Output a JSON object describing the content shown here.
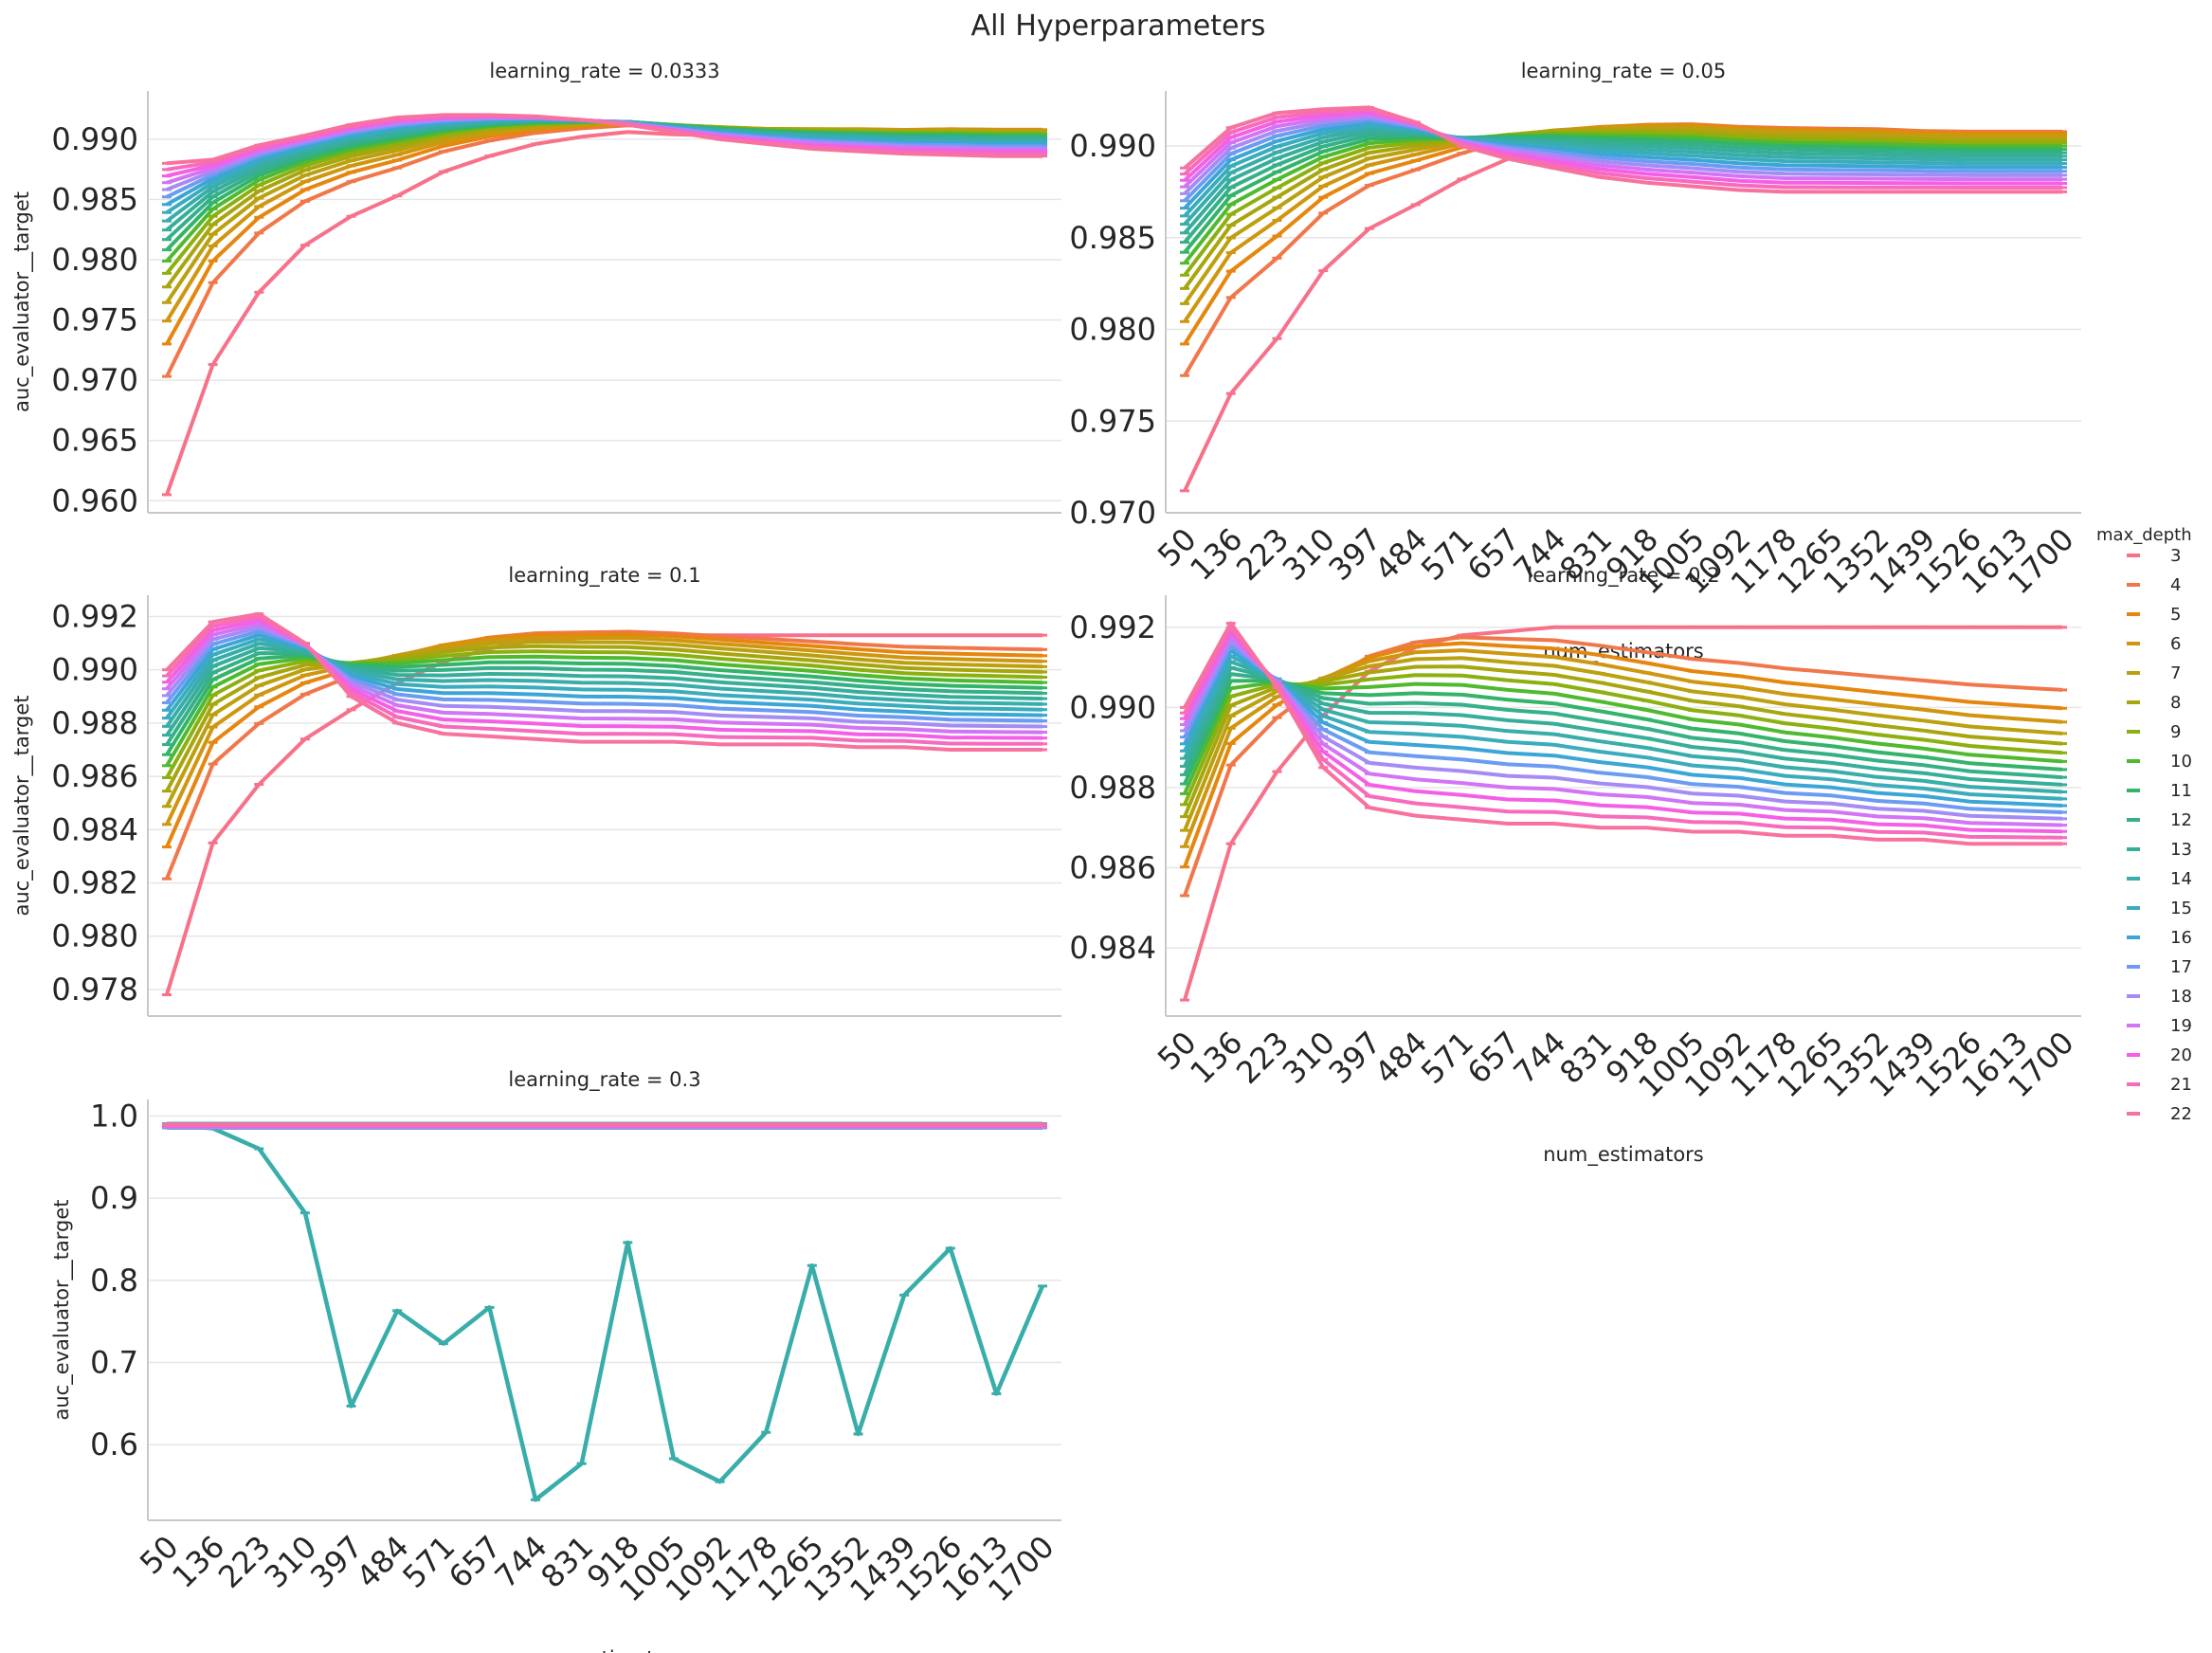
{
  "figure": {
    "title": "All Hyperparameters"
  },
  "chart_data": {
    "type": "line",
    "facet": "learning_rate",
    "x": [
      50,
      136,
      223,
      310,
      397,
      484,
      571,
      657,
      744,
      831,
      918,
      1005,
      1092,
      1178,
      1265,
      1352,
      1439,
      1526,
      1613,
      1700
    ],
    "xlabel": "num_estimators",
    "ylabel": "auc_evaluator__target",
    "legend": {
      "title": "max_depth",
      "placement": "right",
      "entries": [
        {
          "label": "3",
          "color": "#f77189"
        },
        {
          "label": "4",
          "color": "#f1774a"
        },
        {
          "label": "5",
          "color": "#e5870f"
        },
        {
          "label": "6",
          "color": "#cf960f"
        },
        {
          "label": "7",
          "color": "#bba00f"
        },
        {
          "label": "8",
          "color": "#a8a60f"
        },
        {
          "label": "9",
          "color": "#8bb00f"
        },
        {
          "label": "10",
          "color": "#4fba2f"
        },
        {
          "label": "11",
          "color": "#33b46a"
        },
        {
          "label": "12",
          "color": "#35b088"
        },
        {
          "label": "13",
          "color": "#37ae9a"
        },
        {
          "label": "14",
          "color": "#38adaa"
        },
        {
          "label": "15",
          "color": "#3aacbc"
        },
        {
          "label": "16",
          "color": "#3ba6d6"
        },
        {
          "label": "17",
          "color": "#6c9bf2"
        },
        {
          "label": "18",
          "color": "#a48cf4"
        },
        {
          "label": "19",
          "color": "#d274f4"
        },
        {
          "label": "20",
          "color": "#f45fe6"
        },
        {
          "label": "21",
          "color": "#f66bbc"
        },
        {
          "label": "22",
          "color": "#f7729f"
        }
      ]
    },
    "panels": [
      {
        "title": "learning_rate = 0.0333",
        "ylim": [
          0.959,
          0.994
        ],
        "yticks": [
          "0.960",
          "0.965",
          "0.970",
          "0.975",
          "0.980",
          "0.985",
          "0.990"
        ],
        "ytick_values": [
          0.96,
          0.965,
          0.97,
          0.975,
          0.98,
          0.985,
          0.99
        ],
        "show_xticks": false,
        "model": {
          "type": "approach",
          "start": [
            0.9605,
            0.9713,
            0.9773,
            0.9812,
            0.9836,
            0.9853,
            0.9873,
            0.9886,
            0.9896,
            0.9902,
            0.9906,
            0.9904,
            0.9903,
            0.9902,
            0.9903,
            0.9904,
            0.9904,
            0.9905,
            0.9905,
            0.9905
          ],
          "peak": [
            0.988,
            0.9905,
            0.9912,
            0.9915,
            0.9917,
            0.9918,
            0.992,
            0.9922,
            0.9922,
            0.9922,
            0.9922,
            0.9921,
            0.992,
            0.9919,
            0.9918,
            0.9917,
            0.9916,
            0.9916,
            0.9915,
            0.9915
          ],
          "final": [
            0.988,
            0.9883,
            0.9895,
            0.9903,
            0.9912,
            0.9918,
            0.992,
            0.992,
            0.9919,
            0.9916,
            0.9912,
            0.9906,
            0.99,
            0.9896,
            0.9892,
            0.989,
            0.9888,
            0.9887,
            0.9886,
            0.9886
          ]
        }
      },
      {
        "title": "learning_rate = 0.05",
        "ylim": [
          0.97,
          0.993
        ],
        "yticks": [
          "0.970",
          "0.975",
          "0.980",
          "0.985",
          "0.990"
        ],
        "ytick_values": [
          0.97,
          0.975,
          0.98,
          0.985,
          0.99
        ],
        "show_xticks": true,
        "model": {
          "type": "approach",
          "start": [
            0.9712,
            0.9765,
            0.9795,
            0.9832,
            0.9855,
            0.9868,
            0.9882,
            0.9893,
            0.99,
            0.9905,
            0.9908,
            0.9909,
            0.9908,
            0.9908,
            0.9908,
            0.9908,
            0.9907,
            0.9907,
            0.9907,
            0.9907
          ],
          "peak": [
            0.9888,
            0.9912,
            0.9918,
            0.992,
            0.9921,
            0.9922,
            0.9923,
            0.9923,
            0.9923,
            0.9922,
            0.9921,
            0.992,
            0.9918,
            0.9916,
            0.9915,
            0.9914,
            0.9913,
            0.9912,
            0.9912,
            0.9912
          ],
          "final": [
            0.9888,
            0.991,
            0.9918,
            0.992,
            0.9921,
            0.9913,
            0.99,
            0.9893,
            0.9888,
            0.9883,
            0.988,
            0.9878,
            0.9876,
            0.9875,
            0.9875,
            0.9875,
            0.9875,
            0.9875,
            0.9875,
            0.9875
          ]
        }
      },
      {
        "title": "learning_rate = 0.1",
        "ylim": [
          0.977,
          0.9928
        ],
        "yticks": [
          "0.978",
          "0.980",
          "0.982",
          "0.984",
          "0.986",
          "0.988",
          "0.990",
          "0.992"
        ],
        "ytick_values": [
          0.978,
          0.98,
          0.982,
          0.984,
          0.986,
          0.988,
          0.99,
          0.992
        ],
        "show_xticks": false,
        "model": {
          "type": "approach",
          "start": [
            0.9778,
            0.9835,
            0.9857,
            0.9874,
            0.9885,
            0.9895,
            0.9903,
            0.9908,
            0.9911,
            0.9912,
            0.9913,
            0.9913,
            0.9913,
            0.9913,
            0.9913,
            0.9913,
            0.9913,
            0.9913,
            0.9913,
            0.9913
          ],
          "peak": [
            0.99,
            0.9918,
            0.9921,
            0.9922,
            0.9923,
            0.9923,
            0.9923,
            0.9923,
            0.9922,
            0.9921,
            0.992,
            0.9918,
            0.9915,
            0.9912,
            0.9909,
            0.9906,
            0.9903,
            0.9902,
            0.9901,
            0.99
          ],
          "final": [
            0.99,
            0.9918,
            0.9921,
            0.991,
            0.989,
            0.988,
            0.9876,
            0.9875,
            0.9874,
            0.9873,
            0.9873,
            0.9873,
            0.9872,
            0.9872,
            0.9872,
            0.9871,
            0.9871,
            0.987,
            0.987,
            0.987
          ]
        }
      },
      {
        "title": "learning_rate = 0.2",
        "ylim": [
          0.9823,
          0.9928
        ],
        "yticks": [
          "0.984",
          "0.986",
          "0.988",
          "0.990",
          "0.992"
        ],
        "ytick_values": [
          0.984,
          0.986,
          0.988,
          0.99,
          0.992
        ],
        "show_xticks": true,
        "model": {
          "type": "approach",
          "start": [
            0.9827,
            0.9866,
            0.9884,
            0.9898,
            0.9909,
            0.9915,
            0.9918,
            0.9919,
            0.992,
            0.992,
            0.992,
            0.992,
            0.992,
            0.992,
            0.992,
            0.992,
            0.992,
            0.992,
            0.992,
            0.992
          ],
          "peak": [
            0.99,
            0.9921,
            0.9923,
            0.9923,
            0.9923,
            0.9922,
            0.992,
            0.9917,
            0.9914,
            0.991,
            0.9905,
            0.99,
            0.9897,
            0.9893,
            0.989,
            0.9887,
            0.9884,
            0.9881,
            0.9879,
            0.9877
          ],
          "final": [
            0.99,
            0.9921,
            0.9905,
            0.9885,
            0.9875,
            0.9873,
            0.9872,
            0.9871,
            0.9871,
            0.987,
            0.987,
            0.9869,
            0.9869,
            0.9868,
            0.9868,
            0.9867,
            0.9867,
            0.9866,
            0.9866,
            0.9866
          ]
        }
      },
      {
        "title": "learning_rate = 0.3",
        "ylim": [
          0.508,
          1.02
        ],
        "yticks": [
          "0.6",
          "0.7",
          "0.8",
          "0.9",
          "1.0"
        ],
        "ytick_values": [
          0.6,
          0.7,
          0.8,
          0.9,
          1.0
        ],
        "show_xticks": true,
        "model": {
          "type": "flat",
          "base": 0.988,
          "spread": 0.005
        },
        "special": {
          "series": 11,
          "values": [
            0.9885,
            0.985,
            0.96,
            0.882,
            0.647,
            0.763,
            0.723,
            0.767,
            0.533,
            0.577,
            0.846,
            0.583,
            0.555,
            0.615,
            0.818,
            0.613,
            0.782,
            0.839,
            0.662,
            0.793
          ]
        }
      }
    ]
  }
}
